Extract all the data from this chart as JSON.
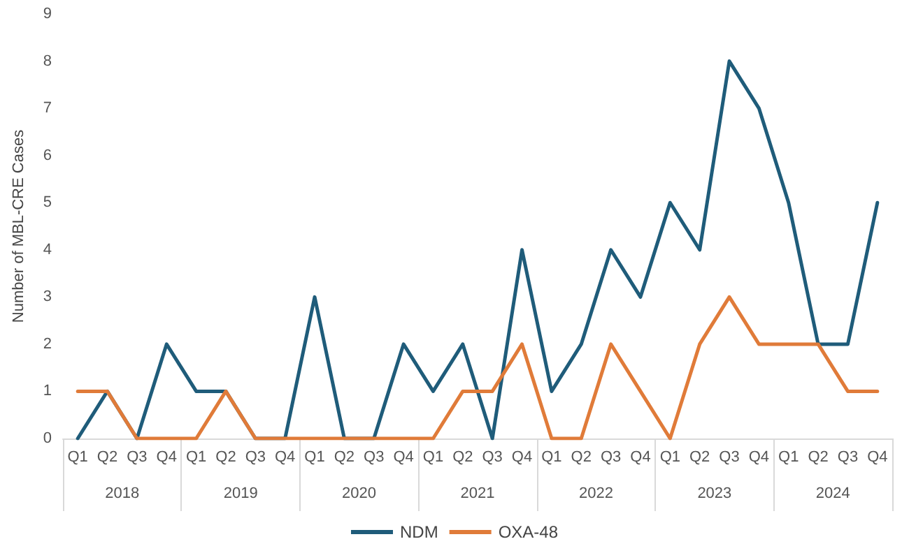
{
  "chart_data": {
    "type": "line",
    "ylabel": "Number of MBL-CRE Cases",
    "categories": [
      "Q1",
      "Q2",
      "Q3",
      "Q4",
      "Q1",
      "Q2",
      "Q3",
      "Q4",
      "Q1",
      "Q2",
      "Q3",
      "Q4",
      "Q1",
      "Q2",
      "Q3",
      "Q4",
      "Q1",
      "Q2",
      "Q3",
      "Q4",
      "Q1",
      "Q2",
      "Q3",
      "Q4",
      "Q1",
      "Q2",
      "Q3",
      "Q4"
    ],
    "annotations": [
      "2018",
      "2019",
      "2020",
      "2021",
      "2022",
      "2023",
      "2024"
    ],
    "series": [
      {
        "name": "NDM",
        "color": "#1f5c7a",
        "values": [
          0,
          1,
          0,
          2,
          1,
          1,
          0,
          0,
          3,
          0,
          0,
          2,
          1,
          2,
          0,
          4,
          1,
          2,
          4,
          3,
          5,
          4,
          8,
          7,
          5,
          2,
          2,
          5
        ]
      },
      {
        "name": "OXA-48",
        "color": "#e07b39",
        "values": [
          1,
          1,
          0,
          0,
          0,
          1,
          0,
          0,
          0,
          0,
          0,
          0,
          0,
          1,
          1,
          2,
          0,
          0,
          2,
          1,
          0,
          2,
          3,
          2,
          2,
          2,
          1,
          1
        ]
      }
    ],
    "ylim": [
      0,
      9
    ],
    "yticks": [
      0,
      1,
      2,
      3,
      4,
      5,
      6,
      7,
      8,
      9
    ],
    "grid": false,
    "legend": "bottom",
    "marker": "none",
    "line_style": "solid"
  }
}
